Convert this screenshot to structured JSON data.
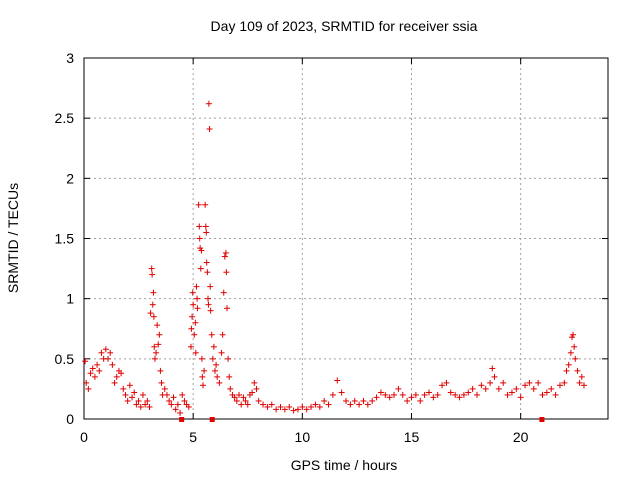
{
  "chart_data": {
    "type": "scatter",
    "title": "Day 109 of 2023, SRMTID for receiver ssia",
    "xlabel": "GPS time / hours",
    "ylabel": "SRMTID / TECUs",
    "xlim": [
      0,
      24
    ],
    "ylim": [
      0,
      3
    ],
    "xticks": [
      0,
      5,
      10,
      15,
      20
    ],
    "yticks": [
      0,
      0.5,
      1,
      1.5,
      2,
      2.5,
      3
    ],
    "xtick_labels": [
      "0",
      "5",
      "10",
      "15",
      "20"
    ],
    "ytick_labels": [
      "0",
      "0.5",
      "1",
      "1.5",
      "2",
      "2.5",
      "3"
    ],
    "grid": true,
    "marker": "+",
    "color": "#e00000",
    "series": [
      {
        "name": "SRMTID",
        "points": [
          [
            0.05,
            0.48
          ],
          [
            0.1,
            0.3
          ],
          [
            0.2,
            0.25
          ],
          [
            0.3,
            0.38
          ],
          [
            0.4,
            0.42
          ],
          [
            0.5,
            0.35
          ],
          [
            0.6,
            0.45
          ],
          [
            0.7,
            0.4
          ],
          [
            0.8,
            0.55
          ],
          [
            0.9,
            0.5
          ],
          [
            1.0,
            0.58
          ],
          [
            1.1,
            0.5
          ],
          [
            1.2,
            0.55
          ],
          [
            1.3,
            0.45
          ],
          [
            1.4,
            0.3
          ],
          [
            1.5,
            0.35
          ],
          [
            1.6,
            0.4
          ],
          [
            1.7,
            0.38
          ],
          [
            1.8,
            0.25
          ],
          [
            1.9,
            0.2
          ],
          [
            2.0,
            0.15
          ],
          [
            2.1,
            0.28
          ],
          [
            2.2,
            0.18
          ],
          [
            2.3,
            0.22
          ],
          [
            2.4,
            0.12
          ],
          [
            2.5,
            0.15
          ],
          [
            2.6,
            0.1
          ],
          [
            2.7,
            0.2
          ],
          [
            2.8,
            0.12
          ],
          [
            2.9,
            0.15
          ],
          [
            3.0,
            0.1
          ],
          [
            3.05,
            0.88
          ],
          [
            3.1,
            1.25
          ],
          [
            3.12,
            1.2
          ],
          [
            3.15,
            0.95
          ],
          [
            3.18,
            1.05
          ],
          [
            3.2,
            0.85
          ],
          [
            3.22,
            0.6
          ],
          [
            3.25,
            0.5
          ],
          [
            3.3,
            0.55
          ],
          [
            3.35,
            0.78
          ],
          [
            3.4,
            0.62
          ],
          [
            3.45,
            0.7
          ],
          [
            3.5,
            0.4
          ],
          [
            3.55,
            0.3
          ],
          [
            3.6,
            0.2
          ],
          [
            3.7,
            0.25
          ],
          [
            3.8,
            0.2
          ],
          [
            3.9,
            0.15
          ],
          [
            4.0,
            0.12
          ],
          [
            4.1,
            0.18
          ],
          [
            4.2,
            0.08
          ],
          [
            4.3,
            0.12
          ],
          [
            4.4,
            0.05
          ],
          [
            4.5,
            0.2
          ],
          [
            4.6,
            0.15
          ],
          [
            4.7,
            0.12
          ],
          [
            4.8,
            0.1
          ],
          [
            4.9,
            0.6
          ],
          [
            4.92,
            0.75
          ],
          [
            4.95,
            0.85
          ],
          [
            4.98,
            1.05
          ],
          [
            5.0,
            0.95
          ],
          [
            5.05,
            0.7
          ],
          [
            5.1,
            0.8
          ],
          [
            5.12,
            0.55
          ],
          [
            5.15,
            1.1
          ],
          [
            5.18,
            1.0
          ],
          [
            5.2,
            0.92
          ],
          [
            5.25,
            1.78
          ],
          [
            5.28,
            1.6
          ],
          [
            5.3,
            1.5
          ],
          [
            5.32,
            1.42
          ],
          [
            5.35,
            1.25
          ],
          [
            5.38,
            1.4
          ],
          [
            5.4,
            0.5
          ],
          [
            5.42,
            0.35
          ],
          [
            5.45,
            0.28
          ],
          [
            5.5,
            0.4
          ],
          [
            5.55,
            1.78
          ],
          [
            5.58,
            1.6
          ],
          [
            5.6,
            1.55
          ],
          [
            5.62,
            1.3
          ],
          [
            5.65,
            1.22
          ],
          [
            5.68,
            1.0
          ],
          [
            5.7,
            0.95
          ],
          [
            5.72,
            2.62
          ],
          [
            5.75,
            2.41
          ],
          [
            5.78,
            1.1
          ],
          [
            5.8,
            0.9
          ],
          [
            5.85,
            0.7
          ],
          [
            5.9,
            0.5
          ],
          [
            5.95,
            0.6
          ],
          [
            6.0,
            0.4
          ],
          [
            6.05,
            0.45
          ],
          [
            6.1,
            0.35
          ],
          [
            6.2,
            0.3
          ],
          [
            6.3,
            0.55
          ],
          [
            6.35,
            0.7
          ],
          [
            6.4,
            1.05
          ],
          [
            6.45,
            1.35
          ],
          [
            6.5,
            1.38
          ],
          [
            6.52,
            1.22
          ],
          [
            6.55,
            0.92
          ],
          [
            6.6,
            0.5
          ],
          [
            6.65,
            0.35
          ],
          [
            6.7,
            0.25
          ],
          [
            6.8,
            0.2
          ],
          [
            6.9,
            0.18
          ],
          [
            7.0,
            0.15
          ],
          [
            7.1,
            0.2
          ],
          [
            7.2,
            0.12
          ],
          [
            7.3,
            0.18
          ],
          [
            7.4,
            0.15
          ],
          [
            7.5,
            0.12
          ],
          [
            7.6,
            0.2
          ],
          [
            7.7,
            0.22
          ],
          [
            7.8,
            0.3
          ],
          [
            7.9,
            0.25
          ],
          [
            8.0,
            0.15
          ],
          [
            8.2,
            0.12
          ],
          [
            8.4,
            0.1
          ],
          [
            8.6,
            0.12
          ],
          [
            8.8,
            0.08
          ],
          [
            9.0,
            0.1
          ],
          [
            9.2,
            0.08
          ],
          [
            9.4,
            0.1
          ],
          [
            9.6,
            0.07
          ],
          [
            9.8,
            0.08
          ],
          [
            10.0,
            0.1
          ],
          [
            10.2,
            0.08
          ],
          [
            10.4,
            0.1
          ],
          [
            10.6,
            0.12
          ],
          [
            10.8,
            0.1
          ],
          [
            11.0,
            0.15
          ],
          [
            11.2,
            0.12
          ],
          [
            11.4,
            0.2
          ],
          [
            11.6,
            0.32
          ],
          [
            11.8,
            0.22
          ],
          [
            12.0,
            0.15
          ],
          [
            12.2,
            0.12
          ],
          [
            12.4,
            0.15
          ],
          [
            12.6,
            0.12
          ],
          [
            12.8,
            0.15
          ],
          [
            13.0,
            0.12
          ],
          [
            13.2,
            0.15
          ],
          [
            13.4,
            0.18
          ],
          [
            13.6,
            0.22
          ],
          [
            13.8,
            0.2
          ],
          [
            14.0,
            0.18
          ],
          [
            14.2,
            0.2
          ],
          [
            14.4,
            0.25
          ],
          [
            14.6,
            0.2
          ],
          [
            14.8,
            0.15
          ],
          [
            15.0,
            0.18
          ],
          [
            15.2,
            0.2
          ],
          [
            15.4,
            0.15
          ],
          [
            15.6,
            0.2
          ],
          [
            15.8,
            0.22
          ],
          [
            16.0,
            0.18
          ],
          [
            16.2,
            0.2
          ],
          [
            16.4,
            0.28
          ],
          [
            16.6,
            0.3
          ],
          [
            16.8,
            0.22
          ],
          [
            17.0,
            0.2
          ],
          [
            17.2,
            0.18
          ],
          [
            17.4,
            0.2
          ],
          [
            17.6,
            0.22
          ],
          [
            17.8,
            0.25
          ],
          [
            18.0,
            0.2
          ],
          [
            18.2,
            0.28
          ],
          [
            18.4,
            0.25
          ],
          [
            18.6,
            0.3
          ],
          [
            18.7,
            0.42
          ],
          [
            18.8,
            0.35
          ],
          [
            19.0,
            0.25
          ],
          [
            19.2,
            0.3
          ],
          [
            19.4,
            0.2
          ],
          [
            19.6,
            0.22
          ],
          [
            19.8,
            0.25
          ],
          [
            20.0,
            0.18
          ],
          [
            20.2,
            0.28
          ],
          [
            20.4,
            0.3
          ],
          [
            20.6,
            0.25
          ],
          [
            20.8,
            0.3
          ],
          [
            21.0,
            0.2
          ],
          [
            21.2,
            0.22
          ],
          [
            21.4,
            0.25
          ],
          [
            21.6,
            0.2
          ],
          [
            21.8,
            0.28
          ],
          [
            22.0,
            0.3
          ],
          [
            22.1,
            0.4
          ],
          [
            22.2,
            0.45
          ],
          [
            22.3,
            0.55
          ],
          [
            22.35,
            0.68
          ],
          [
            22.4,
            0.7
          ],
          [
            22.45,
            0.6
          ],
          [
            22.5,
            0.5
          ],
          [
            22.6,
            0.4
          ],
          [
            22.7,
            0.3
          ],
          [
            22.8,
            0.35
          ],
          [
            22.9,
            0.28
          ]
        ]
      }
    ],
    "bottom_markers_x": [
      4.45,
      5.85,
      20.95
    ]
  }
}
